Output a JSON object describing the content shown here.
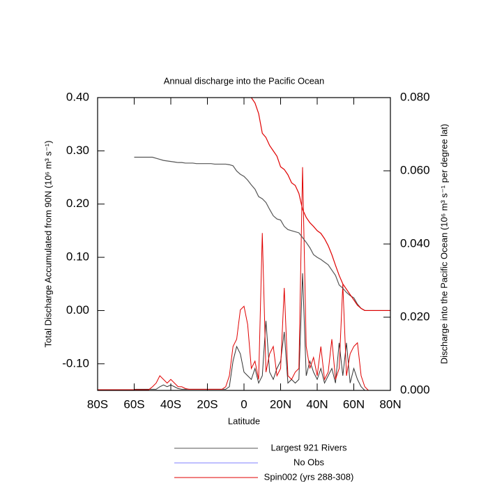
{
  "chart_data": {
    "type": "line",
    "title": "Annual discharge into the Pacific Ocean",
    "x_label": "Latitude",
    "y_label": "Total Discharge Accumulated from 90N (10⁶ m³ s⁻¹)",
    "y2_label": "Discharge into the Pacific Ocean (10⁶ m³ s⁻¹ per degree lat)",
    "xlim": [
      -80,
      80
    ],
    "xticks": [
      {
        "value": -80,
        "label": "80S"
      },
      {
        "value": -60,
        "label": "60S"
      },
      {
        "value": -40,
        "label": "40S"
      },
      {
        "value": -20,
        "label": "20S"
      },
      0,
      {
        "value": 20,
        "label": "20N"
      },
      {
        "value": 40,
        "label": "40N"
      },
      {
        "value": 60,
        "label": "60N"
      },
      {
        "value": 80,
        "label": "80N"
      }
    ],
    "ylim": [
      -0.15,
      0.4
    ],
    "yticks": [
      {
        "value": -0.1,
        "label": "-0.10"
      },
      {
        "value": 0,
        "label": "0.00"
      },
      {
        "value": 0.1,
        "label": "0.10"
      },
      {
        "value": 0.2,
        "label": "0.20"
      },
      {
        "value": 0.3,
        "label": "0.30"
      },
      {
        "value": 0.4,
        "label": "0.40"
      }
    ],
    "y2lim": [
      0,
      0.08
    ],
    "y2ticks": [
      {
        "value": 0,
        "label": "0.000"
      },
      {
        "value": 0.02,
        "label": "0.020"
      },
      {
        "value": 0.04,
        "label": "0.040"
      },
      {
        "value": 0.06,
        "label": "0.060"
      },
      {
        "value": 0.08,
        "label": "0.080"
      }
    ],
    "x": [
      -80,
      -78,
      -76,
      -74,
      -72,
      -70,
      -68,
      -66,
      -64,
      -62,
      -60,
      -58,
      -56,
      -54,
      -52,
      -50,
      -48,
      -46,
      -44,
      -42,
      -40,
      -38,
      -36,
      -34,
      -32,
      -30,
      -28,
      -26,
      -24,
      -22,
      -20,
      -18,
      -16,
      -14,
      -12,
      -10,
      -8,
      -6,
      -4,
      -2,
      0,
      2,
      4,
      6,
      8,
      10,
      12,
      14,
      16,
      18,
      20,
      22,
      24,
      26,
      28,
      30,
      32,
      34,
      36,
      38,
      40,
      42,
      44,
      46,
      48,
      50,
      52,
      54,
      56,
      58,
      60,
      62,
      64,
      66,
      68,
      70,
      72,
      74,
      76,
      78,
      80
    ],
    "series": [
      {
        "name": "Largest 921 Rivers",
        "color": "#555555",
        "values": [
          null,
          null,
          null,
          null,
          null,
          null,
          null,
          null,
          null,
          null,
          0.288,
          0.288,
          0.288,
          0.288,
          0.288,
          0.288,
          0.286,
          0.284,
          0.282,
          0.281,
          0.28,
          0.279,
          0.278,
          0.278,
          0.277,
          0.277,
          0.277,
          0.276,
          0.276,
          0.276,
          0.276,
          0.276,
          0.275,
          0.275,
          0.275,
          0.275,
          0.274,
          0.272,
          0.262,
          0.256,
          0.252,
          0.245,
          0.236,
          0.228,
          0.214,
          0.21,
          0.203,
          0.19,
          0.178,
          0.172,
          0.17,
          0.158,
          0.152,
          0.15,
          0.148,
          0.146,
          0.137,
          0.128,
          0.118,
          0.105,
          0.1,
          0.096,
          0.091,
          0.086,
          0.076,
          0.066,
          0.048,
          0.042,
          0.034,
          0.028,
          0.024,
          0.012,
          0.004,
          0,
          0,
          0,
          0,
          0,
          0,
          0,
          0
        ]
      },
      {
        "name": "No Obs",
        "color": "#7f7fff",
        "values": [
          null,
          null,
          null,
          null,
          null,
          null,
          null,
          null,
          null,
          null,
          null,
          null,
          null,
          null,
          null,
          null,
          null,
          null,
          null,
          null,
          null,
          null,
          null,
          null,
          null,
          null,
          null,
          null,
          null,
          null,
          null,
          null,
          null,
          null,
          null,
          null,
          null,
          null,
          null,
          null,
          null,
          null,
          null,
          null,
          null,
          null,
          null,
          null,
          null,
          null,
          null,
          null,
          null,
          null,
          null,
          null,
          null,
          null,
          null,
          null,
          null,
          null,
          null,
          null,
          null,
          null,
          null,
          null,
          null,
          null,
          null,
          null,
          null,
          null,
          null,
          null,
          null,
          null,
          null,
          null,
          null
        ]
      },
      {
        "name": "Spin002 (yrs 288-308)",
        "color": "#e00000",
        "values": [
          null,
          null,
          null,
          null,
          null,
          null,
          null,
          null,
          null,
          null,
          null,
          null,
          null,
          null,
          null,
          null,
          null,
          null,
          null,
          null,
          null,
          null,
          null,
          null,
          null,
          null,
          null,
          null,
          null,
          null,
          null,
          null,
          null,
          null,
          null,
          null,
          null,
          null,
          null,
          null,
          null,
          null,
          0.4,
          0.39,
          0.37,
          0.333,
          0.325,
          0.31,
          0.3,
          0.29,
          0.27,
          0.265,
          0.255,
          0.24,
          0.235,
          0.22,
          0.19,
          0.175,
          0.165,
          0.158,
          0.15,
          0.145,
          0.135,
          0.122,
          0.105,
          0.085,
          0.066,
          0.05,
          0.04,
          0.03,
          0.02,
          0.01,
          0.004,
          0,
          0,
          0,
          0,
          0,
          0,
          0,
          0
        ]
      }
    ],
    "y2_series": [
      {
        "color": "#333333",
        "axis": "y2",
        "values": [
          null,
          null,
          null,
          null,
          null,
          null,
          null,
          null,
          null,
          null,
          0.0003,
          0.0003,
          0.0003,
          0.0003,
          0.0003,
          0.0003,
          0.0003,
          0.001,
          0.0015,
          0.001,
          0.0015,
          0.001,
          0.0005,
          0.0003,
          0.0003,
          0.0003,
          0.0003,
          0.0003,
          0.0003,
          0.0003,
          0.0003,
          0.0003,
          0.0003,
          0.0003,
          0.0003,
          0.0003,
          0.001,
          0.008,
          0.012,
          0.01,
          0.005,
          0.004,
          0.003,
          0.006,
          0.002,
          0.004,
          0.019,
          0.005,
          0.003,
          0.006,
          0.008,
          0.016,
          0.002,
          0.003,
          0.002,
          0.003,
          0.032,
          0.004,
          0.008,
          0.005,
          0.003,
          0.006,
          0.002,
          0.004,
          0.006,
          0.002,
          0.013,
          0.004,
          0.013,
          0.002,
          0.006,
          0.003,
          0.001,
          0,
          0,
          0,
          0,
          0,
          0,
          0,
          0
        ]
      },
      {
        "color": "#e00000",
        "axis": "y2",
        "values": [
          0.0002,
          0.0002,
          0.0002,
          0.0002,
          0.0002,
          0.0002,
          0.0002,
          0.0002,
          0.0002,
          0.0002,
          0.0002,
          0.0002,
          0.0002,
          0.0002,
          0.0002,
          0.001,
          0.002,
          0.004,
          0.003,
          0.002,
          0.003,
          0.002,
          0.001,
          0.001,
          0.0005,
          0.0003,
          0.0003,
          0.0003,
          0.0003,
          0.0003,
          0.0003,
          0.0003,
          0.0003,
          0.0003,
          0.0003,
          0.001,
          0.004,
          0.012,
          0.014,
          0.022,
          0.023,
          0.018,
          0.006,
          0.008,
          0.003,
          0.043,
          0.005,
          0.01,
          0.012,
          0.004,
          0.006,
          0.028,
          0.004,
          0.003,
          0.005,
          0.006,
          0.061,
          0.012,
          0.006,
          0.009,
          0.004,
          0.012,
          0.003,
          0.005,
          0.014,
          0.003,
          0.006,
          0.029,
          0.004,
          0.01,
          0.012,
          0.013,
          0.004,
          0.001,
          0,
          0,
          0,
          0,
          0,
          0,
          0
        ]
      }
    ]
  }
}
